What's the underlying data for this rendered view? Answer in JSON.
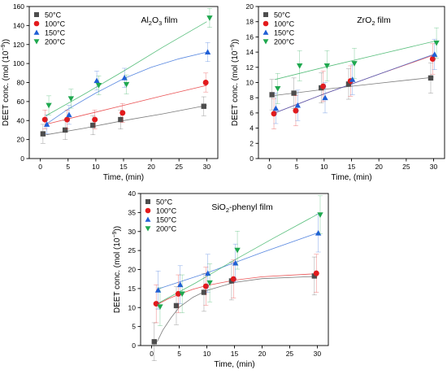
{
  "chart_data": [
    {
      "type": "scatter",
      "id": "al2o3",
      "title": "Al",
      "title_sub": "2",
      "title_mid": "O",
      "title_sub2": "3",
      "title_end": " film",
      "xlabel": "Time, (min)",
      "ylabel": "DEET conc. (mol (10",
      "ylabel_sup": "−9",
      "ylabel_end": "))",
      "xlim": [
        -2,
        32
      ],
      "ylim": [
        0,
        160
      ],
      "xticks": [
        0,
        5,
        10,
        15,
        20,
        25,
        30
      ],
      "yticks": [
        0,
        20,
        40,
        60,
        80,
        100,
        120,
        140,
        160
      ],
      "legend_position": "top-left",
      "x": [
        1,
        5,
        10,
        15,
        30
      ],
      "series": [
        {
          "name": "50°C",
          "color": "#4d4d4d",
          "marker": "square",
          "values": [
            26,
            30,
            35,
            41,
            55
          ],
          "err": [
            10,
            10,
            10,
            10,
            10
          ],
          "fit": [
            [
              1,
              25
            ],
            [
              8,
              32
            ],
            [
              15,
              40
            ],
            [
              22,
              47
            ],
            [
              30,
              56
            ]
          ]
        },
        {
          "name": "100°C",
          "color": "#e31a1c",
          "marker": "circle",
          "values": [
            41,
            41,
            41,
            48,
            80
          ],
          "err": [
            10,
            10,
            10,
            10,
            10
          ],
          "fit": [
            [
              1,
              36
            ],
            [
              8,
              46
            ],
            [
              15,
              56
            ],
            [
              22,
              66
            ],
            [
              30,
              77
            ]
          ]
        },
        {
          "name": "150°C",
          "color": "#1f5fd6",
          "marker": "triangle-up",
          "values": [
            36,
            46,
            82,
            85,
            112
          ],
          "err": [
            10,
            10,
            10,
            10,
            10
          ],
          "fit": [
            [
              1,
              36
            ],
            [
              5,
              52
            ],
            [
              10,
              69
            ],
            [
              15,
              84
            ],
            [
              20,
              96
            ],
            [
              25,
              105
            ],
            [
              30,
              112
            ]
          ]
        },
        {
          "name": "200°C",
          "color": "#1fa84f",
          "marker": "triangle-down",
          "values": [
            56,
            63,
            77,
            78,
            148
          ],
          "err": [
            10,
            10,
            10,
            10,
            10
          ],
          "fit": [
            [
              1,
              45
            ],
            [
              8,
              68
            ],
            [
              15,
              92
            ],
            [
              22,
              117
            ],
            [
              30,
              144
            ]
          ]
        }
      ]
    },
    {
      "type": "scatter",
      "id": "zro2",
      "title": "ZrO",
      "title_sub": "2",
      "title_mid": "",
      "title_sub2": "",
      "title_end": " film",
      "xlabel": "Time, (min)",
      "ylabel": "DEET conc. (mol (10",
      "ylabel_sup": "−9",
      "ylabel_end": "))",
      "xlim": [
        -2,
        32
      ],
      "ylim": [
        0,
        20
      ],
      "xticks": [
        0,
        5,
        10,
        15,
        20,
        25,
        30
      ],
      "yticks": [
        0,
        2,
        4,
        6,
        8,
        10,
        12,
        14,
        16,
        18,
        20
      ],
      "legend_position": "top-left",
      "x": [
        1,
        5,
        10,
        15,
        30
      ],
      "series": [
        {
          "name": "50°C",
          "color": "#4d4d4d",
          "marker": "square",
          "values": [
            8.4,
            8.6,
            9.3,
            9.8,
            10.6
          ],
          "err": [
            2,
            2,
            2,
            2,
            2
          ],
          "fit": [
            [
              1,
              8.3
            ],
            [
              10,
              9.1
            ],
            [
              20,
              9.9
            ],
            [
              30,
              10.7
            ]
          ]
        },
        {
          "name": "100°C",
          "color": "#e31a1c",
          "marker": "circle",
          "values": [
            5.9,
            6.3,
            9.5,
            10.2,
            13.1
          ],
          "err": [
            2,
            2,
            2,
            2,
            2
          ],
          "fit": [
            [
              1,
              6.0
            ],
            [
              10,
              8.5
            ],
            [
              20,
              11.1
            ],
            [
              30,
              13.6
            ]
          ]
        },
        {
          "name": "150°C",
          "color": "#1f5fd6",
          "marker": "triangle-up",
          "values": [
            6.6,
            7.0,
            8.0,
            10.4,
            13.7
          ],
          "err": [
            2,
            2,
            2,
            2,
            2
          ],
          "fit": [
            [
              1,
              6.0
            ],
            [
              10,
              8.5
            ],
            [
              20,
              11.1
            ],
            [
              30,
              13.7
            ]
          ]
        },
        {
          "name": "200°C",
          "color": "#1fa84f",
          "marker": "triangle-down",
          "values": [
            9.2,
            12.2,
            12.2,
            12.5,
            15.2
          ],
          "err": [
            2,
            2,
            2,
            2,
            2
          ],
          "fit": [
            [
              1,
              10.4
            ],
            [
              10,
              12.0
            ],
            [
              20,
              13.7
            ],
            [
              30,
              15.4
            ]
          ]
        }
      ]
    },
    {
      "type": "scatter",
      "id": "sio2",
      "title": "SiO",
      "title_sub": "2",
      "title_mid": "",
      "title_sub2": "",
      "title_end": "-phenyl film",
      "xlabel": "Time, (min)",
      "ylabel": "DEET conc. (mol (10",
      "ylabel_sup": "−9",
      "ylabel_end": "))",
      "xlim": [
        -2,
        32
      ],
      "ylim": [
        0,
        40
      ],
      "xticks": [
        0,
        5,
        10,
        15,
        20,
        25,
        30
      ],
      "yticks": [
        0,
        5,
        10,
        15,
        20,
        25,
        30,
        35,
        40
      ],
      "legend_position": "top-left",
      "x": [
        1,
        5,
        10,
        15,
        30
      ],
      "series": [
        {
          "name": "50°C",
          "color": "#4d4d4d",
          "marker": "square",
          "values": [
            1,
            10.5,
            14,
            17,
            18.3
          ],
          "err": [
            5,
            5,
            5,
            5,
            5
          ],
          "fit": [
            [
              1,
              1
            ],
            [
              2,
              4
            ],
            [
              3.5,
              7.3
            ],
            [
              5,
              10.1
            ],
            [
              7.5,
              12.7
            ],
            [
              10,
              14.5
            ],
            [
              15,
              16.6
            ],
            [
              20,
              17.6
            ],
            [
              30,
              18.2
            ]
          ]
        },
        {
          "name": "100°C",
          "color": "#e31a1c",
          "marker": "circle",
          "values": [
            11,
            13.6,
            15.6,
            17.5,
            19
          ],
          "err": [
            5,
            5,
            5,
            5,
            5
          ],
          "fit": [
            [
              1,
              10.8
            ],
            [
              3,
              12.3
            ],
            [
              5,
              13.5
            ],
            [
              7.5,
              14.8
            ],
            [
              10,
              15.8
            ],
            [
              15,
              17.2
            ],
            [
              20,
              18.1
            ],
            [
              30,
              18.9
            ]
          ]
        },
        {
          "name": "150°C",
          "color": "#1f5fd6",
          "marker": "triangle-up",
          "values": [
            14.6,
            16,
            19,
            21.7,
            29.6
          ],
          "err": [
            5,
            5,
            5,
            5,
            5
          ],
          "fit": [
            [
              1,
              14.8
            ],
            [
              10,
              19.1
            ],
            [
              20,
              24.5
            ],
            [
              30,
              29.6
            ]
          ]
        },
        {
          "name": "200°C",
          "color": "#1fa84f",
          "marker": "triangle-down",
          "values": [
            10.2,
            13.6,
            16.5,
            25.1,
            34.4
          ],
          "err": [
            5,
            5,
            5,
            5,
            5
          ],
          "fit": [
            [
              1,
              11
            ],
            [
              8,
              16.5
            ],
            [
              15,
              22.5
            ],
            [
              22,
              28.2
            ],
            [
              30,
              34.5
            ]
          ]
        }
      ]
    }
  ]
}
